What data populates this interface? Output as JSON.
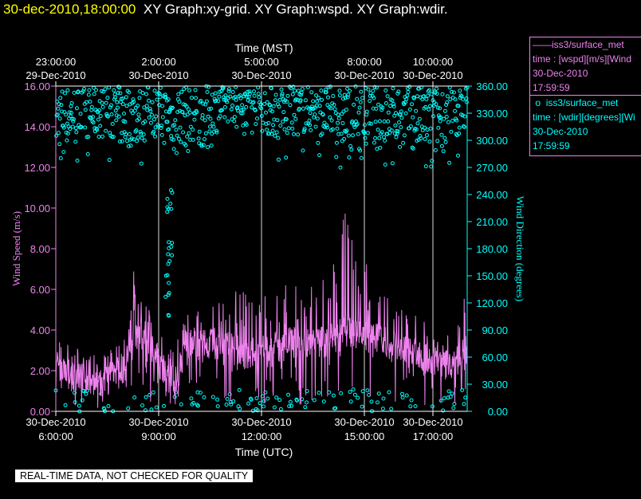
{
  "header": {
    "timestamp": "30-dec-2010,18:00:00",
    "graphs": "XY Graph:xy-grid.  XY Graph:wspd.  XY Graph:wdir."
  },
  "legend": {
    "wspd": {
      "line1": "iss3/surface_met",
      "line2": "time : [wspd][m/s][Wind",
      "line3": "30-Dec-2010",
      "line4": "17:59:59",
      "marker": "line",
      "color": "#ee82ee"
    },
    "wdir": {
      "line1": "iss3/surface_met",
      "line2": "time : [wdir][degrees][Wi",
      "line3": "30-Dec-2010",
      "line4": "17:59:59",
      "marker": "circle",
      "color": "#00ffff"
    }
  },
  "notice": "REAL-TIME DATA, NOT CHECKED FOR QUALITY",
  "chart_data": {
    "type": "line",
    "top_axis_label": "Time (MST)",
    "bottom_axis_label": "Time (UTC)",
    "ylabel_left": "Wind Speed (m/s)",
    "ylabel_right": "Wind Direction (degrees)",
    "ylim_left": [
      0,
      16
    ],
    "ylim_right": [
      0,
      360
    ],
    "xlim_hours_utc": [
      6.0,
      18.0
    ],
    "left_ticks": [
      "0.00",
      "2.00",
      "4.00",
      "6.00",
      "8.00",
      "10.00",
      "12.00",
      "14.00",
      "16.00"
    ],
    "right_ticks": [
      "0.00",
      "30.00",
      "60.00",
      "90.00",
      "120.00",
      "150.00",
      "180.00",
      "210.00",
      "240.00",
      "270.00",
      "300.00",
      "330.00",
      "360.00"
    ],
    "bottom_ticks": [
      {
        "hour": 6,
        "date": "30-Dec-2010",
        "time": "6:00:00"
      },
      {
        "hour": 9,
        "date": "30-Dec-2010",
        "time": "9:00:00"
      },
      {
        "hour": 12,
        "date": "30-Dec-2010",
        "time": "12:00:00"
      },
      {
        "hour": 15,
        "date": "30-Dec-2010",
        "time": "15:00:00"
      },
      {
        "hour": 17,
        "date": "30-Dec-2010",
        "time": "17:00:00"
      }
    ],
    "top_ticks": [
      {
        "hour": 6,
        "time": "23:00:00",
        "date": "29-Dec-2010"
      },
      {
        "hour": 9,
        "time": "2:00:00",
        "date": "30-Dec-2010"
      },
      {
        "hour": 12,
        "time": "5:00:00",
        "date": "30-Dec-2010"
      },
      {
        "hour": 15,
        "time": "8:00:00",
        "date": "30-Dec-2010"
      },
      {
        "hour": 17,
        "time": "10:00:00",
        "date": "30-Dec-2010"
      }
    ],
    "series": [
      {
        "name": "iss3/surface_met time : [wspd][m/s]",
        "axis": "left",
        "color": "#ee82ee",
        "style": "line",
        "x": [
          6.0,
          6.5,
          7.0,
          7.5,
          8.0,
          8.25,
          8.5,
          9.0,
          9.2,
          9.5,
          9.8,
          10.0,
          10.5,
          11.0,
          11.5,
          12.0,
          12.5,
          13.0,
          13.5,
          14.0,
          14.5,
          15.0,
          15.5,
          16.0,
          16.5,
          17.0,
          17.5,
          18.0
        ],
        "mean": [
          2.0,
          1.7,
          1.6,
          1.5,
          1.9,
          4.0,
          3.5,
          2.6,
          1.5,
          1.5,
          3.3,
          3.5,
          3.4,
          3.2,
          2.8,
          3.0,
          3.2,
          3.4,
          3.3,
          3.5,
          4.0,
          3.7,
          3.5,
          3.0,
          2.8,
          2.5,
          2.2,
          3.0
        ],
        "max": [
          3.6,
          3.4,
          3.1,
          2.9,
          3.7,
          7.2,
          6.0,
          4.2,
          3.0,
          3.5,
          6.3,
          6.0,
          5.8,
          5.6,
          6.2,
          5.7,
          6.0,
          6.5,
          6.8,
          7.0,
          10.2,
          7.6,
          6.6,
          5.5,
          4.9,
          4.4,
          4.0,
          6.0
        ]
      },
      {
        "name": "iss3/surface_met time : [wdir][degrees]",
        "axis": "right",
        "color": "#00ffff",
        "style": "scatter",
        "x": [
          6.0,
          6.5,
          7.0,
          7.5,
          8.0,
          8.5,
          8.7,
          9.0,
          9.3,
          9.5,
          9.7,
          10.0,
          10.5,
          11.0,
          11.5,
          12.0,
          12.5,
          13.0,
          13.5,
          14.0,
          14.5,
          15.0,
          15.5,
          16.0,
          16.5,
          17.0,
          17.5,
          18.0
        ],
        "low": [
          290,
          300,
          302,
          303,
          290,
          298,
          320,
          295,
          296,
          290,
          298,
          276,
          305,
          320,
          330,
          310,
          300,
          305,
          310,
          300,
          290,
          288,
          290,
          300,
          286,
          292,
          285,
          320
        ],
        "high": [
          360,
          360,
          358,
          360,
          360,
          360,
          360,
          360,
          360,
          360,
          360,
          360,
          360,
          360,
          360,
          360,
          360,
          360,
          360,
          360,
          360,
          360,
          360,
          360,
          360,
          360,
          360,
          360
        ]
      }
    ],
    "grid": "vertical lines at major time ticks"
  }
}
